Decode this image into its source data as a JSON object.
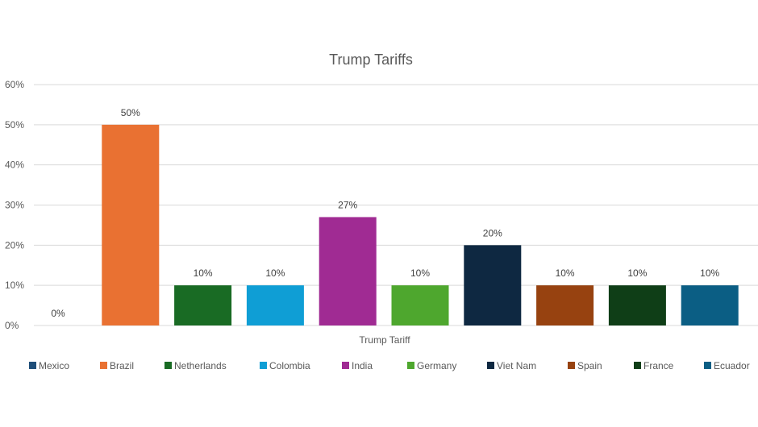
{
  "chart_data": {
    "type": "bar",
    "title": "Trump Tariffs",
    "xlabel": "Trump Tariff",
    "ylabel": "",
    "ylim": [
      0,
      60
    ],
    "yticks": [
      "0%",
      "10%",
      "20%",
      "30%",
      "40%",
      "50%",
      "60%"
    ],
    "grid": true,
    "legend_position": "bottom",
    "categories": [
      "Trump Tariff"
    ],
    "series": [
      {
        "name": "Mexico",
        "values": [
          0
        ],
        "label": "0%",
        "color": "#1f4e79"
      },
      {
        "name": "Brazil",
        "values": [
          50
        ],
        "label": "50%",
        "color": "#e97132"
      },
      {
        "name": "Netherlands",
        "values": [
          10
        ],
        "label": "10%",
        "color": "#196b24"
      },
      {
        "name": "Colombia",
        "values": [
          10
        ],
        "label": "10%",
        "color": "#0f9ed5"
      },
      {
        "name": "India",
        "values": [
          27
        ],
        "label": "27%",
        "color": "#a02b93"
      },
      {
        "name": "Germany",
        "values": [
          10
        ],
        "label": "10%",
        "color": "#4ea72e"
      },
      {
        "name": "Viet Nam",
        "values": [
          20
        ],
        "label": "20%",
        "color": "#0e2841"
      },
      {
        "name": "Spain",
        "values": [
          10
        ],
        "label": "10%",
        "color": "#974210"
      },
      {
        "name": "France",
        "values": [
          10
        ],
        "label": "10%",
        "color": "#0f3e17"
      },
      {
        "name": "Ecuador",
        "values": [
          10
        ],
        "label": "10%",
        "color": "#0b5e84"
      }
    ]
  }
}
